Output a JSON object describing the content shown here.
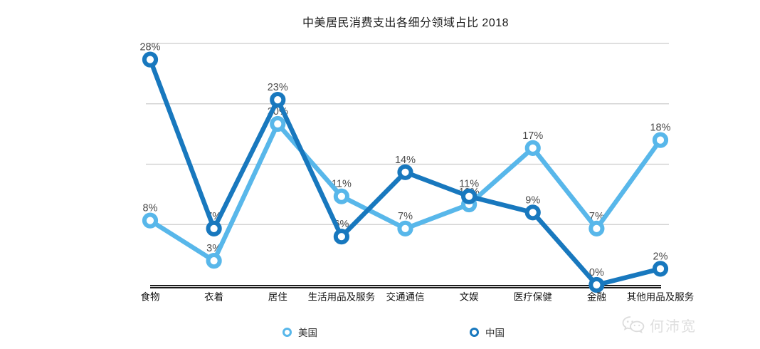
{
  "chart_data": {
    "type": "line",
    "title": "中美居民消费支出各细分领域占比  2018",
    "categories": [
      "食物",
      "衣着",
      "居住",
      "生活用品及服务",
      "交通通信",
      "文娱",
      "医疗保健",
      "金融",
      "其他用品及服务"
    ],
    "series": [
      {
        "name": "美国",
        "color": "#58b7ea",
        "values": [
          8,
          3,
          20,
          11,
          7,
          10,
          17,
          7,
          18
        ]
      },
      {
        "name": "中国",
        "color": "#1878be",
        "values": [
          28,
          7,
          23,
          6,
          14,
          11,
          9,
          0,
          2
        ]
      }
    ],
    "value_label_format": "{v}%",
    "ylim": [
      0,
      30
    ],
    "gridline_values": [
      7.5,
      15,
      22.5,
      30
    ],
    "grid": "horizontal-only",
    "axis_labels_hidden": true,
    "legend_position": "bottom",
    "marker_style": "ring",
    "colors": {
      "gridline": "#cccccc",
      "axis": "#141414",
      "value_label": "#4b4b4b",
      "category_label": "#141414"
    }
  },
  "watermark": {
    "icon": "wechat-icon",
    "text": "何沛宽",
    "color": "#dedede"
  }
}
